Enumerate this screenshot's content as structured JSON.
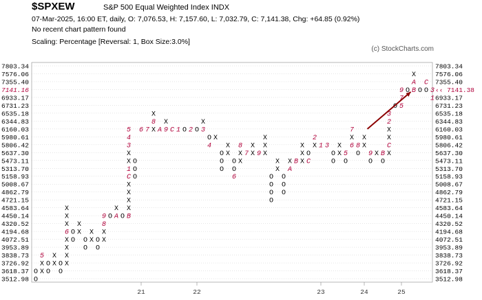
{
  "header": {
    "symbol": "$SPXEW",
    "name": "S&P 500 Equal Weighted Index  INDX",
    "info": "07-Mar-2025, 16:00 ET, daily, O: 7,076.53, H: 7,157.60, L: 7,032.79, C: 7,141.38, Chg: +64.85 (0.92%)",
    "pattern": "No recent chart pattern found",
    "scaling": "Scaling: Percentage [Reversal: 1, Box Size:3.0%]",
    "copyright": "(c) StockCharts.com"
  },
  "colors": {
    "marker": "#000000",
    "month": "#b0003a",
    "arrow": "#8b0000",
    "grid": "#bbbbbb"
  },
  "chart_data": {
    "type": "point-and-figure",
    "box_size_pct": 3.0,
    "reversal": 1,
    "price_levels": [
      "7803.34",
      "7576.06",
      "7355.40",
      "7141.16",
      "6933.17",
      "6731.23",
      "6535.18",
      "6344.83",
      "6160.03",
      "5980.61",
      "5806.42",
      "5637.30",
      "5473.11",
      "5313.70",
      "5158.93",
      "5008.67",
      "4862.79",
      "4721.15",
      "4583.64",
      "4450.14",
      "4320.52",
      "4194.68",
      "4072.51",
      "3953.89",
      "3838.73",
      "3726.92",
      "3618.37",
      "3512.98"
    ],
    "left_labels": [
      "7803.34",
      "7576.06",
      "7355.40",
      "7141.16",
      "6933.17",
      "6731.23",
      "6535.18",
      "6344.83",
      "6160.03",
      "5980.61",
      "5806.42",
      "5637.30",
      "5473.11",
      "5313.70",
      "5158.93",
      "5008.67",
      "4862.79",
      "4721.15",
      "4583.64",
      "4450.14",
      "4320.52",
      "4194.68",
      "4072.51",
      "3953.89",
      "3838.73",
      "3726.92",
      "3618.37",
      "3512.98"
    ],
    "right_labels": [
      "7803.34",
      "7576.06",
      "7355.40",
      "7141.38",
      "6933.17",
      "6731.23",
      "6535.18",
      "6344.83",
      "6160.03",
      "5980.61",
      "5806.42",
      "5637.30",
      "5473.11",
      "5313.70",
      "5158.93",
      "5008.67",
      "4862.79",
      "4721.15",
      "4583.64",
      "4450.14",
      "4320.52",
      "4194.68",
      "4072.51",
      "3953.89",
      "3838.73",
      "3726.92",
      "3618.37",
      "3512.98"
    ],
    "last_price_left": "7141.16",
    "last_price_right": "7141.38",
    "year_labels": [
      "21",
      "22",
      "23",
      "24",
      "25"
    ],
    "columns": [
      {
        "t": "O",
        "b": "3618.37",
        "c": [
          "O",
          "O"
        ]
      },
      {
        "t": "X",
        "b": "3618.37",
        "c": [
          "X",
          "X",
          "5"
        ]
      },
      {
        "t": "O",
        "b": "3726.92",
        "c": [
          "O",
          "O"
        ]
      },
      {
        "t": "X",
        "b": "3726.92",
        "c": [
          "X",
          "X"
        ]
      },
      {
        "t": "O",
        "b": "3726.92",
        "c": [
          "O",
          "O"
        ]
      },
      {
        "t": "X",
        "b": "3726.92",
        "c": [
          "X",
          "X",
          "X",
          "X",
          "6",
          "X",
          "X",
          "X"
        ]
      },
      {
        "t": "O",
        "b": "4194.68",
        "c": [
          "O",
          "O"
        ]
      },
      {
        "t": "X",
        "b": "4194.68",
        "c": [
          "X",
          "X"
        ]
      },
      {
        "t": "O",
        "b": "4072.51",
        "c": [
          "O",
          "O"
        ]
      },
      {
        "t": "X",
        "b": "4072.51",
        "c": [
          "X",
          "X"
        ]
      },
      {
        "t": "O",
        "b": "4072.51",
        "c": [
          "O",
          "O"
        ]
      },
      {
        "t": "X",
        "b": "4072.51",
        "c": [
          "X",
          "X",
          "8",
          "9"
        ]
      },
      {
        "t": "O",
        "b": "4450.14",
        "c": [
          "O"
        ]
      },
      {
        "t": "X",
        "b": "4450.14",
        "c": [
          "A",
          "X"
        ]
      },
      {
        "t": "O",
        "b": "4450.14",
        "c": [
          "O"
        ]
      },
      {
        "t": "X",
        "b": "4450.14",
        "c": [
          "B",
          "X",
          "X",
          "X",
          "X",
          "C",
          "1",
          "X",
          "X",
          "3",
          "4",
          "5"
        ]
      },
      {
        "t": "O",
        "b": "5473.11",
        "c": [
          "O",
          "O",
          "O"
        ]
      },
      {
        "t": "X",
        "b": "6160.03",
        "c": [
          "6"
        ]
      },
      {
        "t": "O",
        "b": "6160.03",
        "c": [
          "7"
        ]
      },
      {
        "t": "X",
        "b": "6160.03",
        "c": [
          "X",
          "8",
          "X"
        ]
      },
      {
        "t": "O",
        "b": "6160.03",
        "c": [
          "A"
        ]
      },
      {
        "t": "X",
        "b": "6160.03",
        "c": [
          "9",
          "X"
        ]
      },
      {
        "t": "O",
        "b": "6160.03",
        "c": [
          "C"
        ]
      },
      {
        "t": "X",
        "b": "6160.03",
        "c": [
          "1"
        ]
      },
      {
        "t": "O",
        "b": "6160.03",
        "c": [
          "O"
        ]
      },
      {
        "t": "X",
        "b": "6160.03",
        "c": [
          "2"
        ]
      },
      {
        "t": "O",
        "b": "6160.03",
        "c": [
          "O"
        ]
      },
      {
        "t": "X",
        "b": "6160.03",
        "c": [
          "3",
          "X"
        ]
      },
      {
        "t": "O",
        "b": "5980.61",
        "c": [
          "O",
          "4"
        ]
      },
      {
        "t": "X",
        "b": "5980.61",
        "c": [
          "X"
        ]
      },
      {
        "t": "O",
        "b": "5637.30",
        "c": [
          "O",
          "O",
          "O"
        ]
      },
      {
        "t": "X",
        "b": "5637.30",
        "c": [
          "X",
          "X"
        ]
      },
      {
        "t": "O",
        "b": "5473.11",
        "c": [
          "O",
          "O",
          "6"
        ]
      },
      {
        "t": "X",
        "b": "5473.11",
        "c": [
          "X",
          "X",
          "8"
        ]
      },
      {
        "t": "O",
        "b": "5637.30",
        "c": [
          "7"
        ]
      },
      {
        "t": "X",
        "b": "5637.30",
        "c": [
          "X",
          "X"
        ]
      },
      {
        "t": "O",
        "b": "5637.30",
        "c": [
          "9"
        ]
      },
      {
        "t": "X",
        "b": "5637.30",
        "c": [
          "X",
          "X",
          "X"
        ]
      },
      {
        "t": "O",
        "b": "5158.93",
        "c": [
          "O",
          "O",
          "O",
          "O"
        ]
      },
      {
        "t": "X",
        "b": "5313.70",
        "c": [
          "X",
          "X"
        ]
      },
      {
        "t": "O",
        "b": "5158.93",
        "c": [
          "O",
          "O",
          "O"
        ]
      },
      {
        "t": "X",
        "b": "5313.70",
        "c": [
          "A",
          "X"
        ]
      },
      {
        "t": "O",
        "b": "5473.11",
        "c": [
          "B"
        ]
      },
      {
        "t": "X",
        "b": "5473.11",
        "c": [
          "X",
          "X",
          "X"
        ]
      },
      {
        "t": "O",
        "b": "5637.30",
        "c": [
          "O",
          "C"
        ]
      },
      {
        "t": "X",
        "b": "5806.42",
        "c": [
          "X",
          "2"
        ]
      },
      {
        "t": "O",
        "b": "5806.42",
        "c": [
          "1"
        ]
      },
      {
        "t": "X",
        "b": "5806.42",
        "c": [
          "3"
        ]
      },
      {
        "t": "O",
        "b": "5637.30",
        "c": [
          "O",
          "O"
        ]
      },
      {
        "t": "X",
        "b": "5637.30",
        "c": [
          "X",
          "X"
        ]
      },
      {
        "t": "O",
        "b": "5637.30",
        "c": [
          "5",
          "O"
        ]
      },
      {
        "t": "X",
        "b": "5806.42",
        "c": [
          "6",
          "X",
          "7"
        ]
      },
      {
        "t": "O",
        "b": "5806.42",
        "c": [
          "8",
          "O"
        ]
      },
      {
        "t": "X",
        "b": "5806.42",
        "c": [
          "X",
          "X"
        ]
      },
      {
        "t": "O",
        "b": "5637.30",
        "c": [
          "9",
          "O"
        ]
      },
      {
        "t": "X",
        "b": "5637.30",
        "c": [
          "X"
        ]
      },
      {
        "t": "O",
        "b": "5637.30",
        "c": [
          "B",
          "O"
        ]
      },
      {
        "t": "X",
        "b": "5637.30",
        "c": [
          "X",
          "C",
          "X",
          "X",
          "2",
          "3"
        ]
      },
      {
        "t": "O",
        "b": "6731.23",
        "c": [
          "O"
        ]
      },
      {
        "t": "X",
        "b": "6731.23",
        "c": [
          "5",
          "7",
          "9"
        ]
      },
      {
        "t": "O",
        "b": "7141.16",
        "c": [
          "O"
        ]
      },
      {
        "t": "X",
        "b": "7141.16",
        "c": [
          "B",
          "A",
          "X"
        ]
      },
      {
        "t": "O",
        "b": "7141.16",
        "c": [
          "O"
        ]
      },
      {
        "t": "X",
        "b": "7141.16",
        "c": [
          "O",
          "C"
        ]
      },
      {
        "t": "O",
        "b": "7141.16",
        "c": [
          "3",
          "1"
        ]
      }
    ]
  }
}
